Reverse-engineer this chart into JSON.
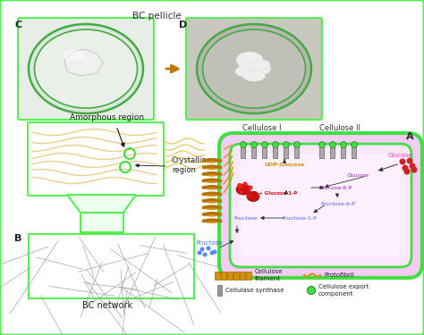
{
  "bg_color": "#ffffff",
  "border_color": "#55ee55",
  "title": "BC pellicle",
  "label_A": "A",
  "label_B": "B",
  "label_C": "C",
  "label_D": "D",
  "cellulose_I": "Cellulose I",
  "cellulose_II": "Cellulose II",
  "amorphous_region": "Amorphous region",
  "crystalline_region": "Crystalline\nregion",
  "bc_network": "BC network",
  "glucose_label": "Glucose",
  "utp_glucose": "UTP + Glucose-1-P",
  "udp_glucose": "UDP-Glucose",
  "glucose_6p": "Glucose-6-P",
  "fructose_6p": "Fructose-6-P",
  "fructose_1p": "Fructose-1-P",
  "fructose": "Fructose",
  "legend_cellulose_filament": "Cellulose\nfilament",
  "legend_cellulase_synthase": "Cellulase synthase",
  "legend_protofibril": "Protofibril",
  "legend_export": "Cellulose export\ncomponent",
  "orange_color": "#d4900a",
  "blue_text": "#4466dd",
  "purple_text": "#9922bb",
  "pink_text": "#dd44bb",
  "red_color": "#cc1111",
  "green_circle": "#44dd44",
  "green_border": "#55ee55",
  "arrow_color": "#222222",
  "glucose_dots_color": "#cc2222",
  "fructose_dots_color": "#5588ff",
  "cell_fill": "#f5ccf5",
  "cell_border": "#44dd44"
}
